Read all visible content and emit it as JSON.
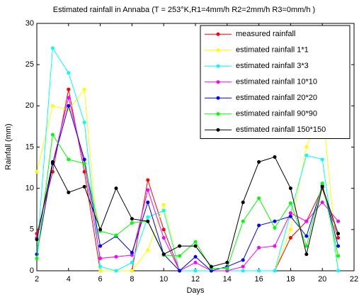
{
  "chart_data": {
    "type": "line",
    "title": "Estimated rainfall in Annaba (T = 253°K,R1=4mm/h  R2=2mm/h  R3=0mm/h )",
    "x_label": "Days",
    "y_label": "Rainfall (mm)",
    "x": [
      2,
      3,
      4,
      5,
      6,
      7,
      8,
      9,
      10,
      11,
      12,
      13,
      14,
      15,
      16,
      17,
      18,
      19,
      20,
      21
    ],
    "series": [
      {
        "name": "measured rainfall",
        "color": "#ff0000",
        "values": [
          4.5,
          12,
          22,
          12,
          0,
          0,
          0,
          11,
          5,
          0,
          0,
          0,
          0,
          0,
          0,
          0,
          4,
          6,
          10,
          4
        ]
      },
      {
        "name": "estimated rainfall 1*1",
        "color": "#ffff00",
        "values": [
          12,
          20,
          19.5,
          22,
          0,
          0,
          0,
          2.5,
          8,
          0,
          0,
          0,
          0,
          0,
          0,
          0,
          5,
          15,
          20,
          0
        ]
      },
      {
        "name": "estimated rainfall 3*3",
        "color": "#00ffff",
        "values": [
          2,
          27,
          24,
          18,
          0.5,
          0,
          1,
          6.5,
          7.3,
          0,
          0,
          0,
          0,
          0,
          0,
          0,
          7,
          14,
          13.5,
          0
        ]
      },
      {
        "name": "estimated rainfall 10*10",
        "color": "#ff00ff",
        "values": [
          4,
          13,
          21,
          13,
          1.5,
          1.7,
          1.9,
          9.8,
          4,
          0,
          1,
          0,
          0,
          0.5,
          2.8,
          3,
          7,
          6,
          8.3,
          6
        ]
      },
      {
        "name": "estimated rainfall 20*20",
        "color": "#0000ff",
        "values": [
          2,
          13,
          20,
          13.5,
          3,
          4.2,
          2.2,
          8.3,
          2,
          0,
          1.7,
          0,
          0.5,
          1.3,
          5.5,
          6,
          6.6,
          4.2,
          10.3,
          3
        ]
      },
      {
        "name": "estimated rainfall 90*90",
        "color": "#00ff00",
        "values": [
          1.5,
          16.5,
          13.5,
          13,
          4.8,
          4.3,
          5.8,
          6,
          1.9,
          1.8,
          3.5,
          0.3,
          0.3,
          6,
          8.8,
          5.2,
          8.2,
          3,
          10.6,
          1.8
        ]
      },
      {
        "name": "estimated rainfall 150*150",
        "color": "#000000",
        "values": [
          3.8,
          13.2,
          9.5,
          10.2,
          5,
          10,
          6.3,
          6,
          2,
          3,
          3,
          0.5,
          1,
          8.3,
          13.2,
          13.8,
          10,
          2,
          10.2,
          4.5
        ]
      }
    ],
    "xlim": [
      2,
      22
    ],
    "xticks": [
      2,
      4,
      6,
      8,
      10,
      12,
      14,
      16,
      18,
      20,
      22
    ],
    "ylim": [
      0,
      30
    ],
    "yticks": [
      0,
      5,
      10,
      15,
      20,
      25,
      30
    ],
    "grid": false,
    "legend": "northeast"
  }
}
